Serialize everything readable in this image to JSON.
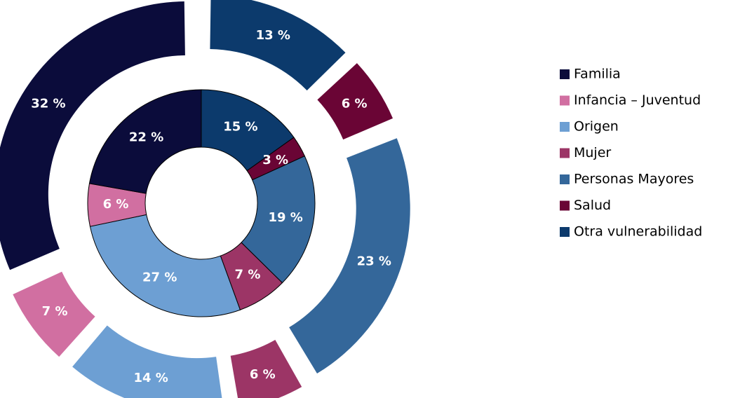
{
  "chart_data": {
    "type": "donut",
    "categories": [
      "Familia",
      "Infancia – Juventud",
      "Origen",
      "Mujer",
      "Personas Mayores",
      "Salud",
      "Otra vulnerabilidad"
    ],
    "colors": [
      "#0b0c3b",
      "#d16fa1",
      "#6d9fd3",
      "#9c3566",
      "#34679a",
      "#6a0535",
      "#0c3a6c"
    ],
    "series": [
      {
        "values": [
          22,
          6,
          27,
          7,
          19,
          3,
          15
        ],
        "value_labels": [
          "22 %",
          "6 %",
          "27 %",
          "7 %",
          "19 %",
          "3 %",
          "15 %"
        ]
      },
      {
        "values": [
          32,
          7,
          14,
          6,
          23,
          6,
          13
        ],
        "value_labels": [
          "32 %",
          "7 %",
          "14 %",
          "6 %",
          "23 %",
          "6 %",
          "13 %"
        ]
      }
    ],
    "legend": "right"
  }
}
